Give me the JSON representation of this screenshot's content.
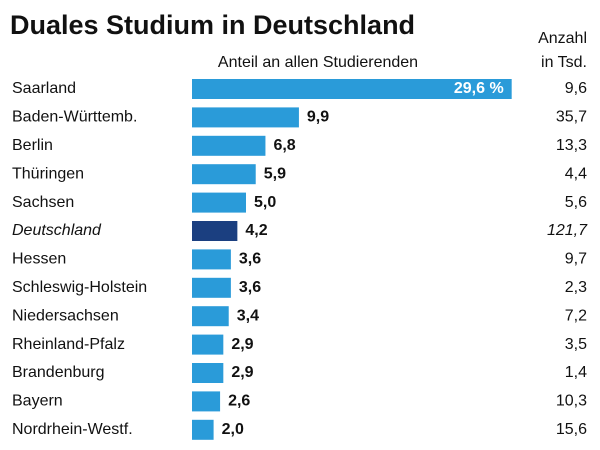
{
  "chart_data": {
    "type": "bar",
    "title": "Duales Studium in Deutschland",
    "subtitle": "Anteil an allen Studierenden",
    "count_header": [
      "Anzahl",
      "in Tsd."
    ],
    "categories": [
      "Saarland",
      "Baden-Württemb.",
      "Berlin",
      "Thüringen",
      "Sachsen",
      "Deutschland",
      "Hessen",
      "Schleswig-Holstein",
      "Niedersachsen",
      "Rheinland-Pfalz",
      "Brandenburg",
      "Bayern",
      "Nordrhein-Westf."
    ],
    "values": [
      29.6,
      9.9,
      6.8,
      5.9,
      5.0,
      4.2,
      3.6,
      3.6,
      3.4,
      2.9,
      2.9,
      2.6,
      2.0
    ],
    "value_labels": [
      "29,6 %",
      "9,9",
      "6,8",
      "5,9",
      "5,0",
      "4,2",
      "3,6",
      "3,6",
      "3,4",
      "2,9",
      "2,9",
      "2,6",
      "2,0"
    ],
    "colors": [
      "#2a9bd9",
      "#2a9bd9",
      "#2a9bd9",
      "#2a9bd9",
      "#2a9bd9",
      "#1b3f80",
      "#2a9bd9",
      "#2a9bd9",
      "#2a9bd9",
      "#2a9bd9",
      "#2a9bd9",
      "#2a9bd9",
      "#2a9bd9"
    ],
    "counts": [
      "9,6",
      "35,7",
      "13,3",
      "4,4",
      "5,6",
      "121,7",
      "9,7",
      "2,3",
      "7,2",
      "3,5",
      "1,4",
      "10,3",
      "15,6"
    ]
  }
}
